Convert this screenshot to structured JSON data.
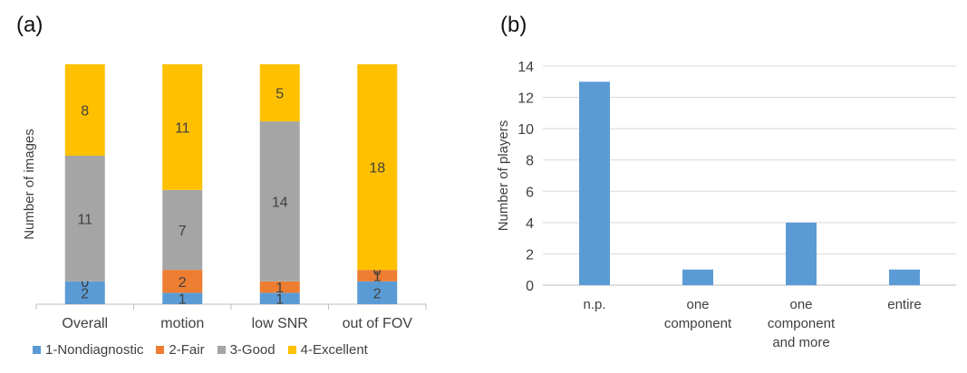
{
  "panels": {
    "a": "(a)",
    "b": "(b)"
  },
  "colors": {
    "nondiagnostic": "#5b9bd5",
    "fair": "#ed7d31",
    "good": "#a5a5a5",
    "excellent": "#ffc000",
    "bar_b": "#5b9bd5",
    "grid": "#d9d9d9",
    "axis": "#bfbfbf"
  },
  "chart_data": [
    {
      "type": "bar",
      "stacked": true,
      "title": "",
      "ylabel": "Number of images",
      "xlabel": "",
      "categories": [
        "Overall",
        "motion",
        "low SNR",
        "out of FOV"
      ],
      "series": [
        {
          "name": "1-Nondiagnostic",
          "values": [
            2,
            1,
            1,
            2
          ],
          "labels": [
            "2",
            "1",
            "1",
            "2"
          ],
          "color_key": "nondiagnostic"
        },
        {
          "name": "2-Fair",
          "values": [
            0,
            2,
            1,
            1
          ],
          "labels": [
            "0",
            "2",
            "1",
            "1"
          ],
          "color_key": "fair"
        },
        {
          "name": "3-Good",
          "values": [
            11,
            7,
            14,
            0
          ],
          "labels": [
            "11",
            "7",
            "14",
            "0"
          ],
          "color_key": "good"
        },
        {
          "name": "4-Excellent",
          "values": [
            8,
            11,
            5,
            18
          ],
          "labels": [
            "8",
            "11",
            "5",
            "18"
          ],
          "color_key": "excellent"
        }
      ],
      "legend_position": "bottom",
      "ylim": [
        0,
        21
      ]
    },
    {
      "type": "bar",
      "title": "",
      "ylabel": "Number of players",
      "xlabel": "",
      "categories": [
        "n.p.",
        "one component",
        "one component and more",
        "entire"
      ],
      "category_lines": [
        [
          "n.p."
        ],
        [
          "one",
          "component"
        ],
        [
          "one",
          "component",
          "and more"
        ],
        [
          "entire"
        ]
      ],
      "values": [
        13,
        1,
        4,
        1
      ],
      "ylim": [
        0,
        14
      ],
      "yticks": [
        "0",
        "2",
        "4",
        "6",
        "8",
        "10",
        "12",
        "14"
      ],
      "grid": true
    }
  ]
}
